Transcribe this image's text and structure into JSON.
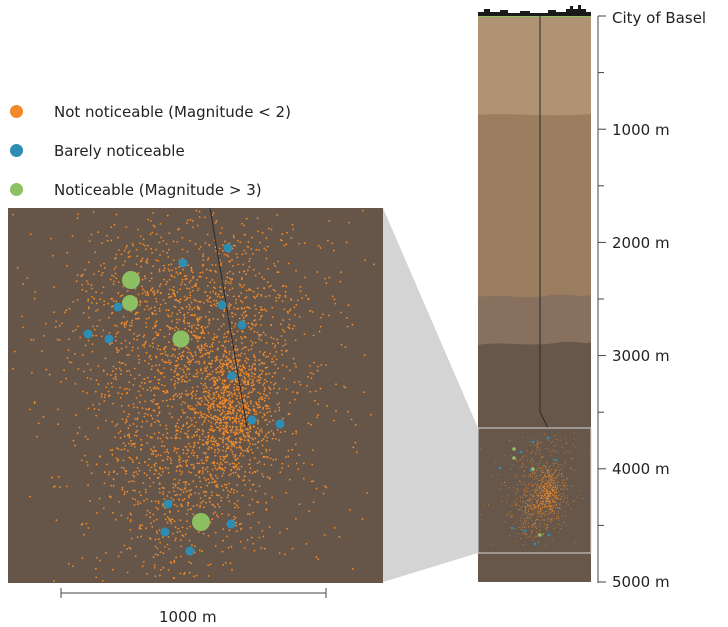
{
  "legend": [
    {
      "label": "Not noticeable (Magnitude < 2)",
      "color": "#f28a2a"
    },
    {
      "label": "Barely noticeable",
      "color": "#2e8db3"
    },
    {
      "label": "Noticeable (Magnitude > 3)",
      "color": "#8dc063"
    }
  ],
  "depth_axis": {
    "top_label": "City of Basel",
    "labels": [
      "1000 m",
      "2000 m",
      "3000 m",
      "4000 m",
      "5000 m"
    ]
  },
  "scale_bar": {
    "label": "1000 m"
  },
  "colors": {
    "orange": "#f28a2a",
    "blue": "#2e8db3",
    "green": "#8dc063",
    "layer_top": "#b09373",
    "layer_mid": "#9b7d60",
    "layer_lower": "#87705e",
    "layer_bottom": "#67574a",
    "zoom_background": "#66564a",
    "projection": "#d4d4d4"
  }
}
